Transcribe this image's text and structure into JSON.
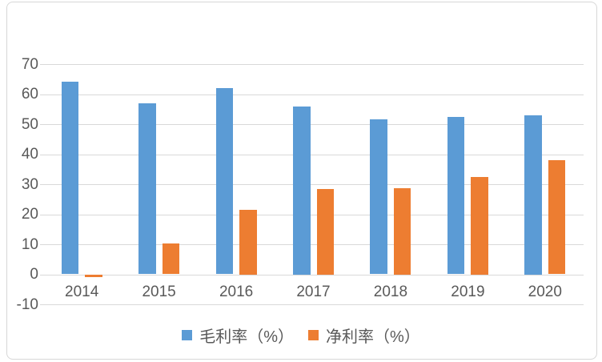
{
  "chart_data": {
    "type": "bar",
    "title": "",
    "categories": [
      "2014",
      "2015",
      "2016",
      "2017",
      "2018",
      "2019",
      "2020"
    ],
    "series": [
      {
        "name": "毛利率（%）",
        "color": "#5B9BD5",
        "values": [
          64.2,
          56.9,
          61.9,
          55.8,
          51.7,
          52.3,
          53.0
        ]
      },
      {
        "name": "净利率（%）",
        "color": "#ED7D31",
        "values": [
          -0.8,
          10.3,
          21.6,
          28.4,
          28.6,
          32.4,
          38.1
        ]
      }
    ],
    "xlabel": "",
    "ylabel": "",
    "ylim": [
      -10,
      70
    ],
    "yticks": [
      70,
      60,
      50,
      40,
      30,
      20,
      10,
      0,
      -10
    ],
    "grid": true,
    "legend_position": "bottom",
    "colors": {
      "gridline": "#D9D9D9",
      "axis_label": "#595959",
      "frame_border": "#D7D7D7",
      "background": "#FFFFFF"
    }
  }
}
